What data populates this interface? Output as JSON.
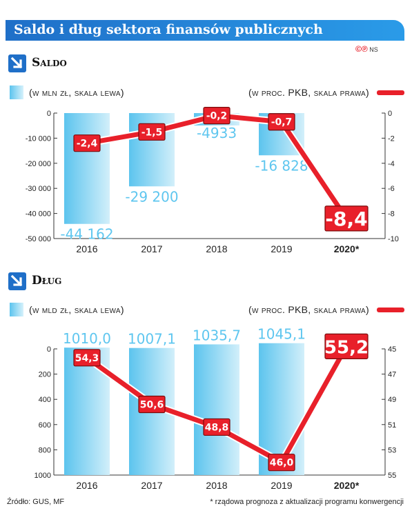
{
  "title": "Saldo i dług sektora finansów publicznych",
  "credit": {
    "cp": "©℗",
    "agency": "NS"
  },
  "source": "Źródło: GUS, MF",
  "footnote": "* rządowa prognoza z aktualizacji programu konwergencji",
  "colors": {
    "bar": "#5cc4ee",
    "bar_label": "#5ec6ef",
    "line": "#e8202a",
    "title_bg": "#2183d6"
  },
  "chart_data": [
    {
      "type": "bar",
      "title": "Saldo",
      "categories": [
        "2016",
        "2017",
        "2018",
        "2019",
        "2020*"
      ],
      "bar_legend": "(w mln zł, skala lewa)",
      "line_legend": "(w proc. PKB, skala prawa)",
      "bar_values": [
        -44162,
        -29200,
        -4933,
        -16828,
        null
      ],
      "bar_labels": [
        "-44 162",
        "-29 200",
        "-4933",
        "-16 828",
        ""
      ],
      "line_values": [
        -2.4,
        -1.5,
        -0.2,
        -0.7,
        -8.4
      ],
      "line_labels": [
        "-2,4",
        "-1,5",
        "-0,2",
        "-0,7",
        "-8,4"
      ],
      "ylim_left": [
        -50000,
        0
      ],
      "yticks_left": [
        "0",
        "-10 000",
        "-20 000",
        "-30 000",
        "-40 000",
        "-50 000"
      ],
      "ylim_right": [
        -10,
        0
      ],
      "yticks_right": [
        "0",
        "-2",
        "-4",
        "-6",
        "-8",
        "-10"
      ]
    },
    {
      "type": "bar",
      "title": "Dług",
      "categories": [
        "2016",
        "2017",
        "2018",
        "2019",
        "2020*"
      ],
      "bar_legend": "(w mld zł, skala lewa)",
      "line_legend": "(w proc. PKB, skala prawa)",
      "bar_values": [
        1010.0,
        1007.1,
        1035.7,
        1045.1,
        null
      ],
      "bar_labels": [
        "1010,0",
        "1007,1",
        "1035,7",
        "1045,1",
        ""
      ],
      "line_values": [
        54.3,
        50.6,
        48.8,
        46.0,
        55.2
      ],
      "line_labels": [
        "54,3",
        "50,6",
        "48,8",
        "46,0",
        "55,2"
      ],
      "ylim_left": [
        0,
        1000
      ],
      "yticks_left": [
        "0",
        "200",
        "400",
        "600",
        "800",
        "1000"
      ],
      "ylim_right": [
        45,
        55
      ],
      "yticks_right": [
        "45",
        "47",
        "49",
        "51",
        "53",
        "55"
      ]
    }
  ]
}
